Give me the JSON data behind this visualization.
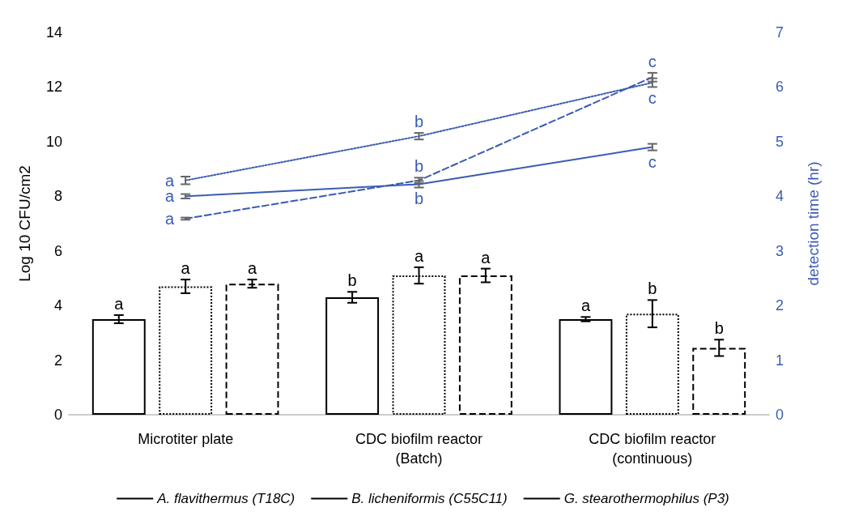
{
  "chart_data": {
    "type": "bar",
    "ylabel": "Log 10 CFU/cm2",
    "y2label": "detection time (hr)",
    "categories": [
      "Microtiter plate",
      "CDC biofilm reactor\n(Batch)",
      "CDC biofilm reactor\n(continuous)"
    ],
    "ylim": [
      0,
      14
    ],
    "yticks": [
      0,
      2,
      4,
      6,
      8,
      10,
      12,
      14
    ],
    "y2lim": [
      0,
      7
    ],
    "y2ticks": [
      0,
      1,
      2,
      3,
      4,
      5,
      6,
      7
    ],
    "legend": "bottom",
    "marker": "none",
    "series": [
      {
        "name": "A. flavithermus (T18C)",
        "color": "#000000",
        "line_style": "solid",
        "values": [
          3.5,
          4.3,
          3.5
        ],
        "errors": [
          0.15,
          0.2,
          0.08
        ],
        "value_labels": [
          "a",
          "b",
          "a"
        ]
      },
      {
        "name": "B. licheniformis (C55C11)",
        "color": "#000000",
        "line_style": "dotted",
        "values": [
          4.7,
          5.1,
          3.7
        ],
        "errors": [
          0.25,
          0.3,
          0.5
        ],
        "value_labels": [
          "a",
          "a",
          "b"
        ]
      },
      {
        "name": "G. stearothermophilus (P3)",
        "color": "#000000",
        "line_style": "dashed",
        "values": [
          4.8,
          5.1,
          2.45
        ],
        "errors": [
          0.15,
          0.25,
          0.3
        ],
        "value_labels": [
          "a",
          "a",
          "b"
        ]
      },
      {
        "type": "line",
        "axis": "y2",
        "color": "#3a5bb5",
        "line_style": "solid",
        "values": [
          4.0,
          4.22,
          4.9
        ],
        "errors": [
          0.04,
          0.06,
          0.06
        ],
        "value_labels": [
          "a",
          "b",
          "c"
        ]
      },
      {
        "type": "line",
        "axis": "y2",
        "color": "#3a5bb5",
        "line_style": "dotted",
        "values": [
          4.29,
          5.1,
          6.08
        ],
        "errors": [
          0.07,
          0.06,
          0.08
        ],
        "value_labels": [
          "a",
          "b",
          "c"
        ]
      },
      {
        "type": "line",
        "axis": "y2",
        "color": "#3a5bb5",
        "line_style": "dashed",
        "values": [
          3.59,
          4.29,
          6.18
        ],
        "errors": [
          0.02,
          0.05,
          0.08
        ],
        "value_labels": [
          "a",
          "b",
          "c"
        ]
      }
    ]
  }
}
